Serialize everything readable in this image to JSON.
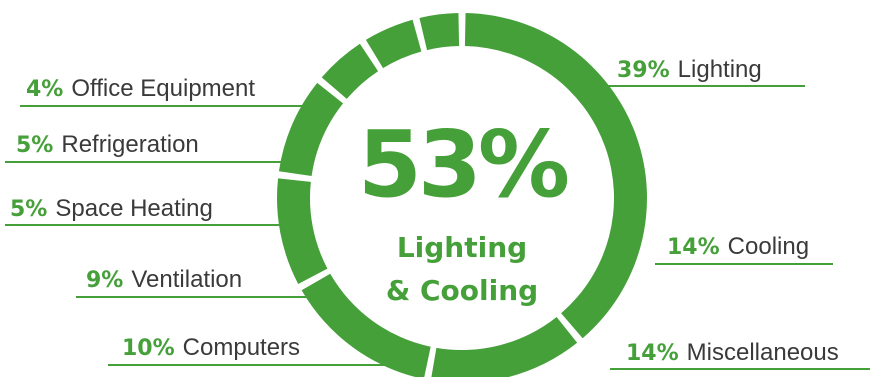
{
  "chart_data": {
    "type": "pie",
    "center_value": "53%",
    "center_label_line1": "Lighting",
    "center_label_line2": "& Cooling",
    "colors": {
      "accent": "#46a03a",
      "text": "#3a3a3a",
      "line": "#46a03a"
    },
    "slices": [
      {
        "percent_label": "39%",
        "name": "Lighting",
        "value": 39
      },
      {
        "percent_label": "14%",
        "name": "Cooling",
        "value": 14
      },
      {
        "percent_label": "14%",
        "name": "Miscellaneous",
        "value": 14
      },
      {
        "percent_label": "10%",
        "name": "Computers",
        "value": 10
      },
      {
        "percent_label": "9%",
        "name": "Ventilation",
        "value": 9
      },
      {
        "percent_label": "5%",
        "name": "Space Heating",
        "value": 5
      },
      {
        "percent_label": "5%",
        "name": "Refrigeration",
        "value": 5
      },
      {
        "percent_label": "4%",
        "name": "Office Equipment",
        "value": 4
      }
    ]
  }
}
